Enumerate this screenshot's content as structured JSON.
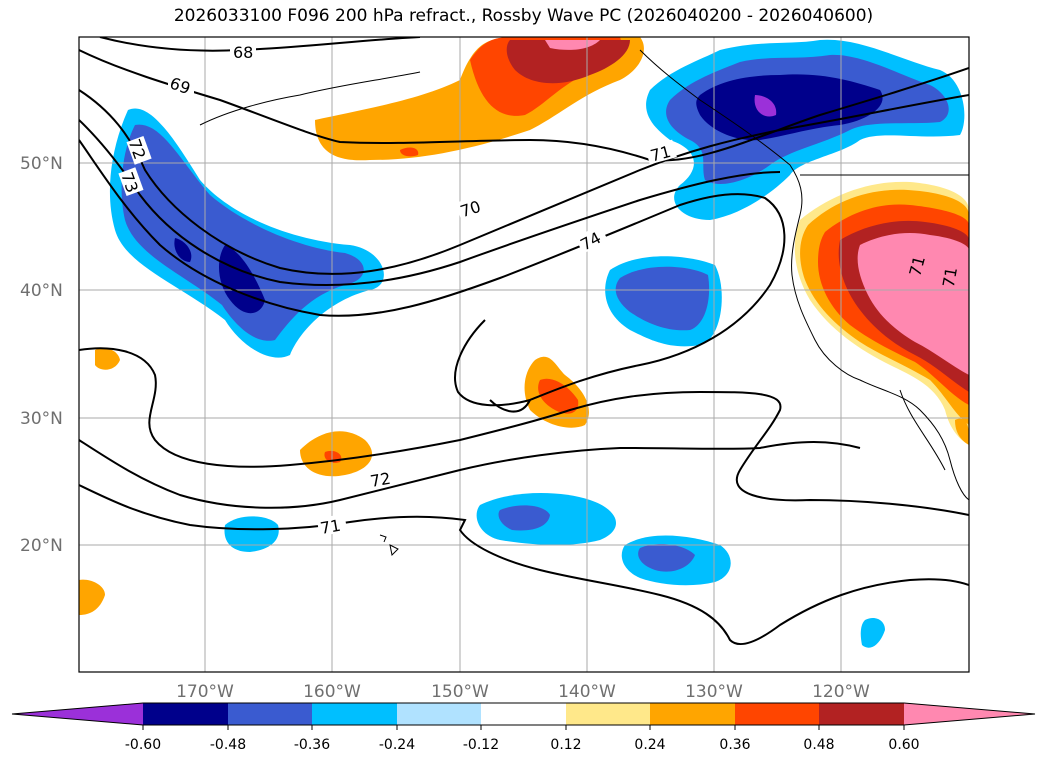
{
  "title": "2026033100 F096 200 hPa refract., Rossby Wave PC (2026040200 - 2026040600)",
  "axes": {
    "lat_labels": [
      "50°N",
      "40°N",
      "30°N",
      "20°N"
    ],
    "lon_labels": [
      "170°W",
      "160°W",
      "150°W",
      "140°W",
      "130°W",
      "120°W"
    ]
  },
  "contour_labels": [
    "68",
    "69",
    "72",
    "73",
    "70",
    "71",
    "74",
    "72",
    "71",
    "71",
    "71"
  ],
  "colorbar": {
    "ticks": [
      "-0.60",
      "-0.48",
      "-0.36",
      "-0.24",
      "-0.12",
      "0.12",
      "0.24",
      "0.36",
      "0.48",
      "0.60"
    ],
    "colors": [
      "#9b30d9",
      "#00008b",
      "#3a5bd0",
      "#00bfff",
      "#b0e2ff",
      "#ffffff",
      "#ffe88a",
      "#ffa500",
      "#ff4500",
      "#b22222",
      "#ff88b0"
    ]
  }
}
